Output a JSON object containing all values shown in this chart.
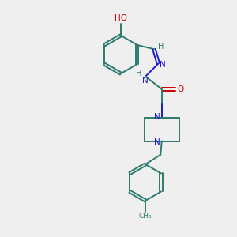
{
  "background_color": "#efefef",
  "bond_color": "#2d7a6e",
  "nitrogen_color": "#1a1acc",
  "oxygen_color": "#cc0000",
  "figsize": [
    3.0,
    3.0
  ],
  "dpi": 100,
  "xlim": [
    0,
    10
  ],
  "ylim": [
    0,
    10
  ]
}
